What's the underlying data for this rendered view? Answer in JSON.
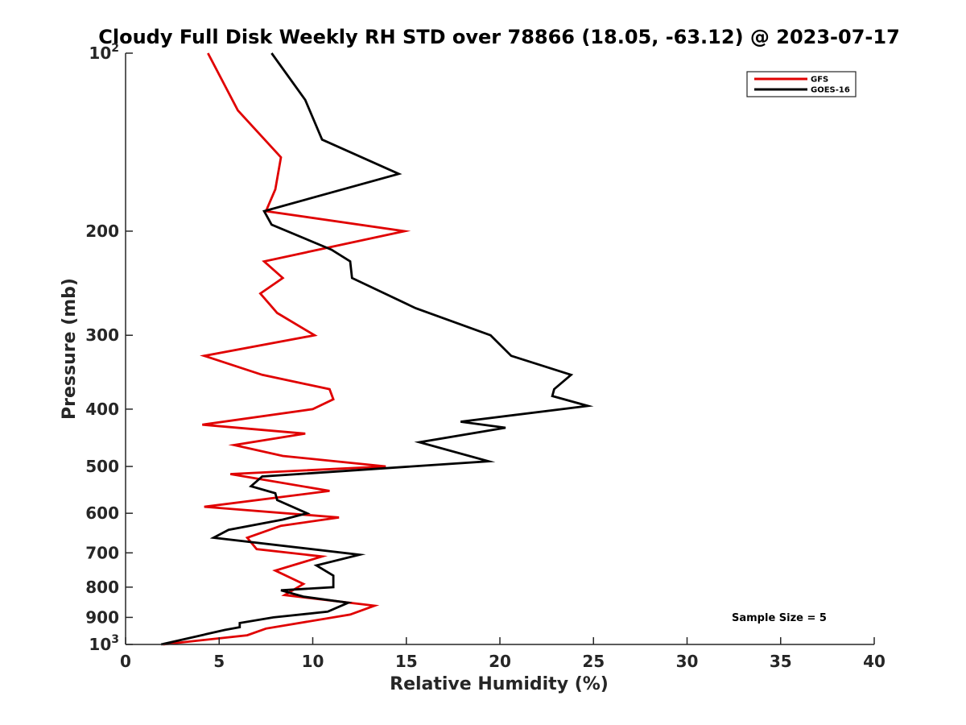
{
  "chart_data": {
    "type": "line",
    "title": "Cloudy Full Disk Weekly RH STD over 78866 (18.05, -63.12) @ 2023-07-17",
    "xlabel": "Relative Humidity (%)",
    "ylabel": "Pressure (mb)",
    "xlim": [
      0,
      40
    ],
    "ylim": [
      100,
      1000
    ],
    "yscale": "log",
    "y_reversed": true,
    "grid": false,
    "legend_position": "top-right",
    "xticks": [
      0,
      5,
      10,
      15,
      20,
      25,
      30,
      35,
      40
    ],
    "xtick_labels": [
      "0",
      "5",
      "10",
      "15",
      "20",
      "25",
      "30",
      "35",
      "40"
    ],
    "yticks": [
      100,
      200,
      300,
      400,
      500,
      600,
      700,
      800,
      900,
      1000
    ],
    "ytick_labels": [
      {
        "base": "10",
        "sup": "2"
      },
      {
        "base": "200",
        "sup": ""
      },
      {
        "base": "300",
        "sup": ""
      },
      {
        "base": "400",
        "sup": ""
      },
      {
        "base": "500",
        "sup": ""
      },
      {
        "base": "600",
        "sup": ""
      },
      {
        "base": "700",
        "sup": ""
      },
      {
        "base": "800",
        "sup": ""
      },
      {
        "base": "900",
        "sup": ""
      },
      {
        "base": "10",
        "sup": "3"
      }
    ],
    "annotation": "Sample Size = 5",
    "series": [
      {
        "name": "GFS",
        "color": "#e00000",
        "points": [
          [
            4.4,
            100
          ],
          [
            6.0,
            125
          ],
          [
            8.3,
            150
          ],
          [
            8.0,
            170
          ],
          [
            7.5,
            185
          ],
          [
            14.9,
            200
          ],
          [
            7.4,
            225
          ],
          [
            8.4,
            240
          ],
          [
            7.2,
            255
          ],
          [
            8.1,
            275
          ],
          [
            10.1,
            300
          ],
          [
            4.2,
            325
          ],
          [
            7.3,
            350
          ],
          [
            10.9,
            370
          ],
          [
            11.1,
            385
          ],
          [
            10.0,
            400
          ],
          [
            4.1,
            425
          ],
          [
            9.6,
            440
          ],
          [
            5.8,
            460
          ],
          [
            8.4,
            480
          ],
          [
            13.9,
            500
          ],
          [
            5.6,
            515
          ],
          [
            10.9,
            550
          ],
          [
            4.2,
            585
          ],
          [
            11.4,
            610
          ],
          [
            8.3,
            630
          ],
          [
            6.5,
            660
          ],
          [
            7.0,
            690
          ],
          [
            10.5,
            710
          ],
          [
            8.0,
            750
          ],
          [
            9.5,
            790
          ],
          [
            8.5,
            825
          ],
          [
            13.3,
            860
          ],
          [
            12.0,
            890
          ],
          [
            7.5,
            940
          ],
          [
            6.5,
            965
          ],
          [
            2.0,
            1000
          ]
        ]
      },
      {
        "name": "GOES-16",
        "color": "#000000",
        "points": [
          [
            7.8,
            100
          ],
          [
            9.6,
            120
          ],
          [
            10.5,
            140
          ],
          [
            14.6,
            160
          ],
          [
            7.4,
            185
          ],
          [
            7.8,
            195
          ],
          [
            11.0,
            215
          ],
          [
            12.0,
            225
          ],
          [
            12.1,
            240
          ],
          [
            15.5,
            270
          ],
          [
            19.5,
            300
          ],
          [
            20.6,
            325
          ],
          [
            23.8,
            350
          ],
          [
            22.9,
            370
          ],
          [
            22.8,
            380
          ],
          [
            24.7,
            395
          ],
          [
            17.9,
            420
          ],
          [
            20.3,
            430
          ],
          [
            15.7,
            455
          ],
          [
            19.4,
            490
          ],
          [
            7.3,
            520
          ],
          [
            6.7,
            540
          ],
          [
            8.0,
            555
          ],
          [
            8.1,
            570
          ],
          [
            9.7,
            600
          ],
          [
            8.4,
            615
          ],
          [
            5.5,
            640
          ],
          [
            4.7,
            660
          ],
          [
            12.5,
            705
          ],
          [
            10.2,
            735
          ],
          [
            11.1,
            765
          ],
          [
            11.1,
            800
          ],
          [
            8.3,
            810
          ],
          [
            9.5,
            830
          ],
          [
            11.9,
            850
          ],
          [
            10.8,
            880
          ],
          [
            7.9,
            900
          ],
          [
            6.1,
            920
          ],
          [
            6.1,
            935
          ],
          [
            5.3,
            945
          ],
          [
            1.9,
            1000
          ]
        ]
      }
    ]
  }
}
